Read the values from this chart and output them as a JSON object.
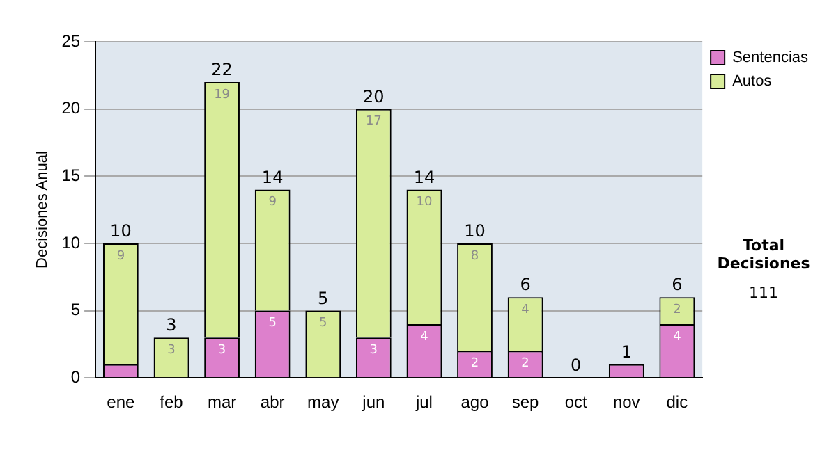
{
  "chart_data": {
    "type": "bar",
    "stacked": true,
    "ylabel": "Decisiones Anual",
    "categories": [
      "ene",
      "feb",
      "mar",
      "abr",
      "may",
      "jun",
      "jul",
      "ago",
      "sep",
      "oct",
      "nov",
      "dic"
    ],
    "series": [
      {
        "name": "Sentencias",
        "color": "#dd80cc",
        "values": [
          1,
          0,
          3,
          5,
          0,
          3,
          4,
          2,
          2,
          0,
          1,
          4
        ],
        "value_labels": [
          null,
          null,
          "3",
          "5",
          null,
          "3",
          "4",
          "2",
          "2",
          null,
          null,
          "4"
        ]
      },
      {
        "name": "Autos",
        "color": "#d8ec9a",
        "values": [
          9,
          3,
          19,
          9,
          5,
          17,
          10,
          8,
          4,
          0,
          0,
          2
        ],
        "value_labels": [
          "9",
          "3",
          "19",
          "9",
          "5",
          "17",
          "10",
          "8",
          "4",
          null,
          null,
          "2"
        ]
      }
    ],
    "totals": [
      "10",
      "3",
      "22",
      "14",
      "5",
      "20",
      "14",
      "10",
      "6",
      "0",
      "1",
      "6"
    ],
    "ylim": [
      0,
      25
    ],
    "yticks": [
      0,
      5,
      10,
      15,
      20,
      25
    ],
    "grid": "y",
    "legend": "right",
    "annotations": [
      "Total Decisiones",
      "111"
    ]
  }
}
